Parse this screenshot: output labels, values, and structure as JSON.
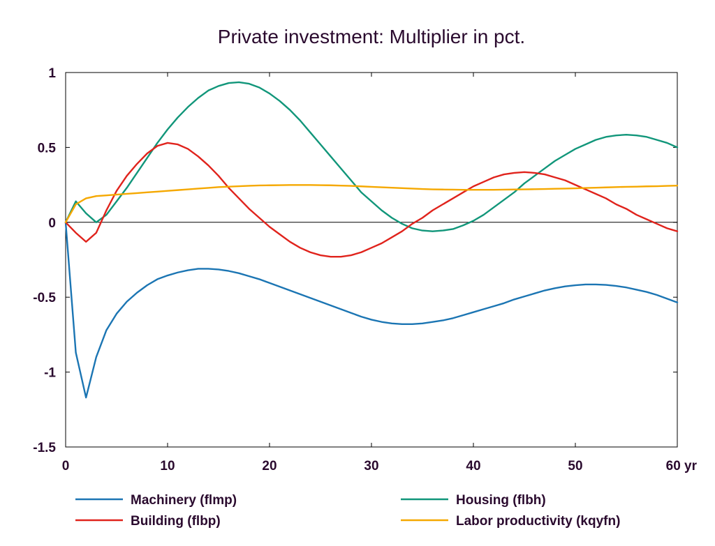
{
  "chart_data": {
    "type": "line",
    "title": "Private investment: Multiplier in pct.",
    "xlabel": "",
    "ylabel": "",
    "x_unit": "yr",
    "xlim": [
      0,
      60
    ],
    "ylim": [
      -1.5,
      1
    ],
    "x_ticks": [
      0,
      10,
      20,
      30,
      40,
      50,
      60
    ],
    "x_tick_labels": [
      "0",
      "10",
      "20",
      "30",
      "40",
      "50",
      "60 yr"
    ],
    "y_ticks": [
      1,
      0.5,
      0,
      -0.5,
      -1,
      -1.5
    ],
    "y_tick_labels": [
      "1",
      "0.5",
      "0",
      "-0.5",
      "-1",
      "-1.5"
    ],
    "grid": false,
    "zero_line": true,
    "legend_position": "bottom",
    "series": [
      {
        "name": "Machinery (flmp)",
        "color": "#1b75b3",
        "x": [
          0,
          1,
          2,
          3,
          4,
          5,
          6,
          7,
          8,
          9,
          10,
          11,
          12,
          13,
          14,
          15,
          16,
          17,
          18,
          19,
          20,
          21,
          22,
          23,
          24,
          25,
          26,
          27,
          28,
          29,
          30,
          31,
          32,
          33,
          34,
          35,
          36,
          37,
          38,
          39,
          40,
          41,
          42,
          43,
          44,
          45,
          46,
          47,
          48,
          49,
          50,
          51,
          52,
          53,
          54,
          55,
          56,
          57,
          58,
          59,
          60
        ],
        "values": [
          0,
          -0.87,
          -1.17,
          -0.9,
          -0.72,
          -0.61,
          -0.53,
          -0.47,
          -0.42,
          -0.38,
          -0.355,
          -0.335,
          -0.32,
          -0.31,
          -0.31,
          -0.315,
          -0.325,
          -0.34,
          -0.36,
          -0.38,
          -0.405,
          -0.43,
          -0.455,
          -0.48,
          -0.505,
          -0.53,
          -0.555,
          -0.58,
          -0.605,
          -0.63,
          -0.65,
          -0.665,
          -0.675,
          -0.68,
          -0.68,
          -0.675,
          -0.665,
          -0.655,
          -0.64,
          -0.62,
          -0.6,
          -0.58,
          -0.56,
          -0.54,
          -0.515,
          -0.495,
          -0.475,
          -0.455,
          -0.44,
          -0.428,
          -0.42,
          -0.415,
          -0.415,
          -0.418,
          -0.425,
          -0.435,
          -0.45,
          -0.465,
          -0.485,
          -0.51,
          -0.535
        ]
      },
      {
        "name": "Housing (flbh)",
        "color": "#11967a",
        "x": [
          0,
          1,
          2,
          3,
          4,
          5,
          6,
          7,
          8,
          9,
          10,
          11,
          12,
          13,
          14,
          15,
          16,
          17,
          18,
          19,
          20,
          21,
          22,
          23,
          24,
          25,
          26,
          27,
          28,
          29,
          30,
          31,
          32,
          33,
          34,
          35,
          36,
          37,
          38,
          39,
          40,
          41,
          42,
          43,
          44,
          45,
          46,
          47,
          48,
          49,
          50,
          51,
          52,
          53,
          54,
          55,
          56,
          57,
          58,
          59,
          60
        ],
        "values": [
          0,
          0.14,
          0.06,
          0.0,
          0.05,
          0.14,
          0.23,
          0.33,
          0.43,
          0.53,
          0.62,
          0.7,
          0.77,
          0.83,
          0.88,
          0.91,
          0.93,
          0.935,
          0.925,
          0.9,
          0.86,
          0.81,
          0.75,
          0.68,
          0.6,
          0.52,
          0.44,
          0.36,
          0.28,
          0.2,
          0.14,
          0.08,
          0.03,
          -0.01,
          -0.04,
          -0.055,
          -0.06,
          -0.055,
          -0.045,
          -0.02,
          0.01,
          0.05,
          0.1,
          0.15,
          0.2,
          0.26,
          0.31,
          0.36,
          0.41,
          0.45,
          0.49,
          0.52,
          0.55,
          0.57,
          0.58,
          0.585,
          0.58,
          0.57,
          0.55,
          0.53,
          0.5
        ]
      },
      {
        "name": "Building (flbp)",
        "color": "#e0231c",
        "x": [
          0,
          1,
          2,
          3,
          4,
          5,
          6,
          7,
          8,
          9,
          10,
          11,
          12,
          13,
          14,
          15,
          16,
          17,
          18,
          19,
          20,
          21,
          22,
          23,
          24,
          25,
          26,
          27,
          28,
          29,
          30,
          31,
          32,
          33,
          34,
          35,
          36,
          37,
          38,
          39,
          40,
          41,
          42,
          43,
          44,
          45,
          46,
          47,
          48,
          49,
          50,
          51,
          52,
          53,
          54,
          55,
          56,
          57,
          58,
          59,
          60
        ],
        "values": [
          0,
          -0.07,
          -0.13,
          -0.07,
          0.08,
          0.21,
          0.31,
          0.39,
          0.46,
          0.51,
          0.53,
          0.52,
          0.49,
          0.44,
          0.38,
          0.31,
          0.23,
          0.16,
          0.09,
          0.03,
          -0.03,
          -0.08,
          -0.13,
          -0.17,
          -0.2,
          -0.22,
          -0.23,
          -0.23,
          -0.22,
          -0.2,
          -0.17,
          -0.14,
          -0.1,
          -0.06,
          -0.01,
          0.03,
          0.08,
          0.12,
          0.16,
          0.2,
          0.24,
          0.27,
          0.3,
          0.32,
          0.33,
          0.335,
          0.33,
          0.32,
          0.3,
          0.28,
          0.25,
          0.22,
          0.19,
          0.16,
          0.12,
          0.09,
          0.05,
          0.02,
          -0.01,
          -0.04,
          -0.06
        ]
      },
      {
        "name": "Labor productivity (kqyfn)",
        "color": "#f5a800",
        "x": [
          0,
          1,
          2,
          3,
          4,
          5,
          6,
          7,
          8,
          9,
          10,
          11,
          12,
          13,
          14,
          15,
          16,
          17,
          18,
          19,
          20,
          21,
          22,
          23,
          24,
          25,
          26,
          27,
          28,
          29,
          30,
          31,
          32,
          33,
          34,
          35,
          36,
          37,
          38,
          39,
          40,
          41,
          42,
          43,
          44,
          45,
          46,
          47,
          48,
          49,
          50,
          51,
          52,
          53,
          54,
          55,
          56,
          57,
          58,
          59,
          60
        ],
        "values": [
          0,
          0.12,
          0.16,
          0.175,
          0.18,
          0.185,
          0.19,
          0.195,
          0.2,
          0.205,
          0.21,
          0.215,
          0.22,
          0.225,
          0.23,
          0.235,
          0.238,
          0.241,
          0.244,
          0.246,
          0.247,
          0.248,
          0.249,
          0.249,
          0.249,
          0.248,
          0.247,
          0.245,
          0.243,
          0.24,
          0.237,
          0.234,
          0.231,
          0.228,
          0.225,
          0.222,
          0.22,
          0.219,
          0.218,
          0.217,
          0.217,
          0.217,
          0.217,
          0.218,
          0.219,
          0.22,
          0.221,
          0.222,
          0.224,
          0.225,
          0.227,
          0.229,
          0.231,
          0.233,
          0.235,
          0.237,
          0.238,
          0.24,
          0.241,
          0.243,
          0.245
        ]
      }
    ]
  }
}
